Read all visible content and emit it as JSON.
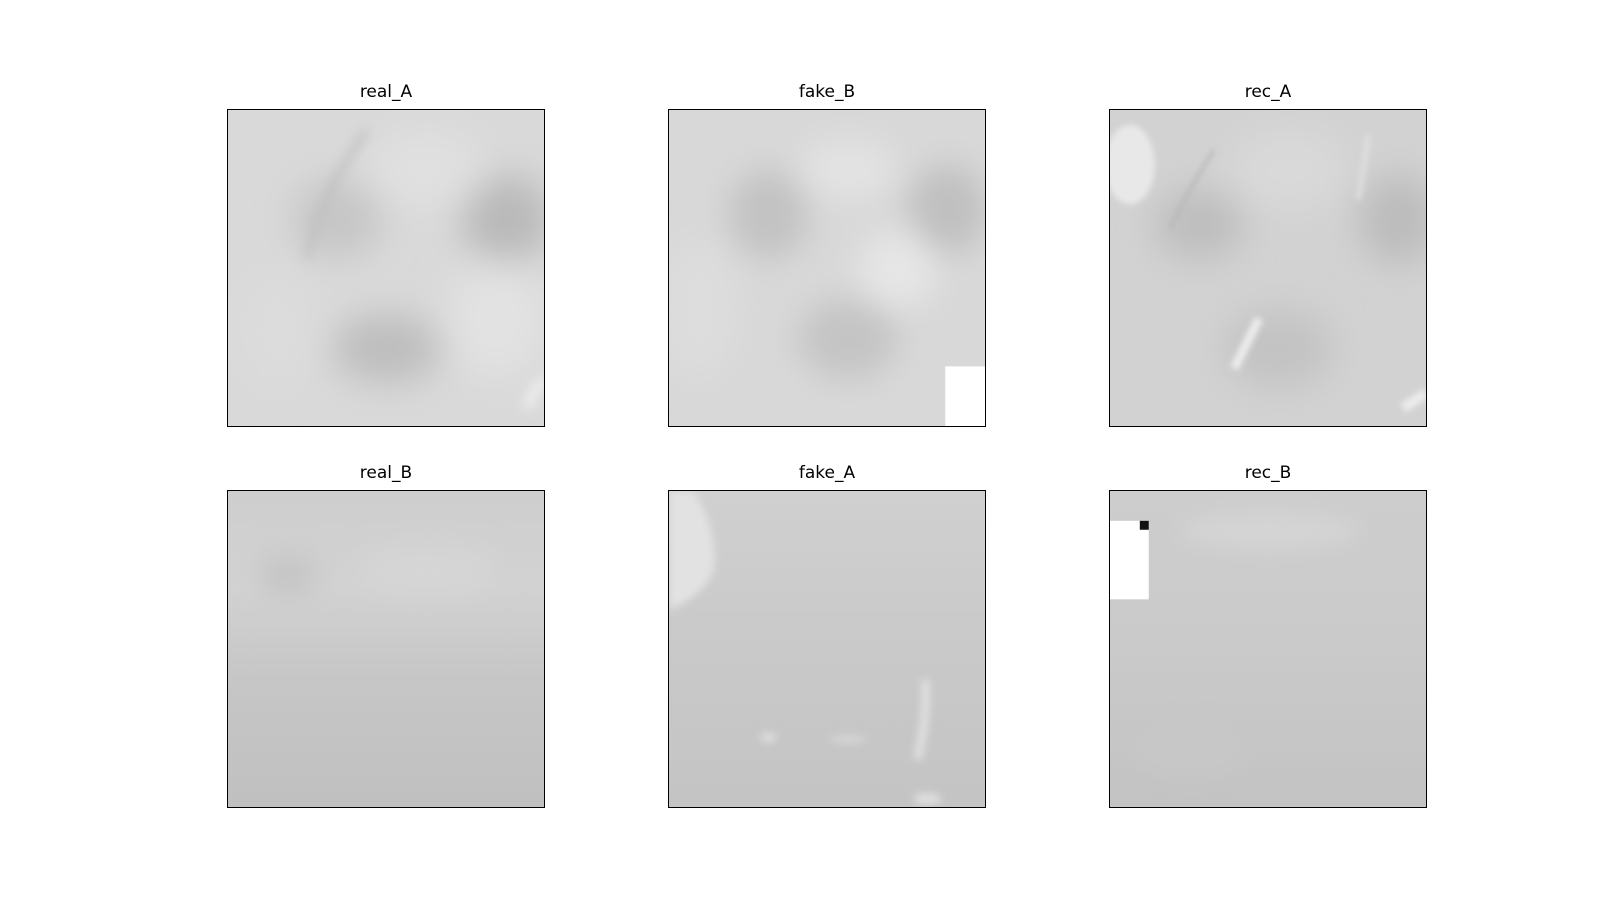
{
  "panels": [
    {
      "title": "real_A"
    },
    {
      "title": "fake_B"
    },
    {
      "title": "rec_A"
    },
    {
      "title": "real_B"
    },
    {
      "title": "fake_A"
    },
    {
      "title": "rec_B"
    }
  ]
}
